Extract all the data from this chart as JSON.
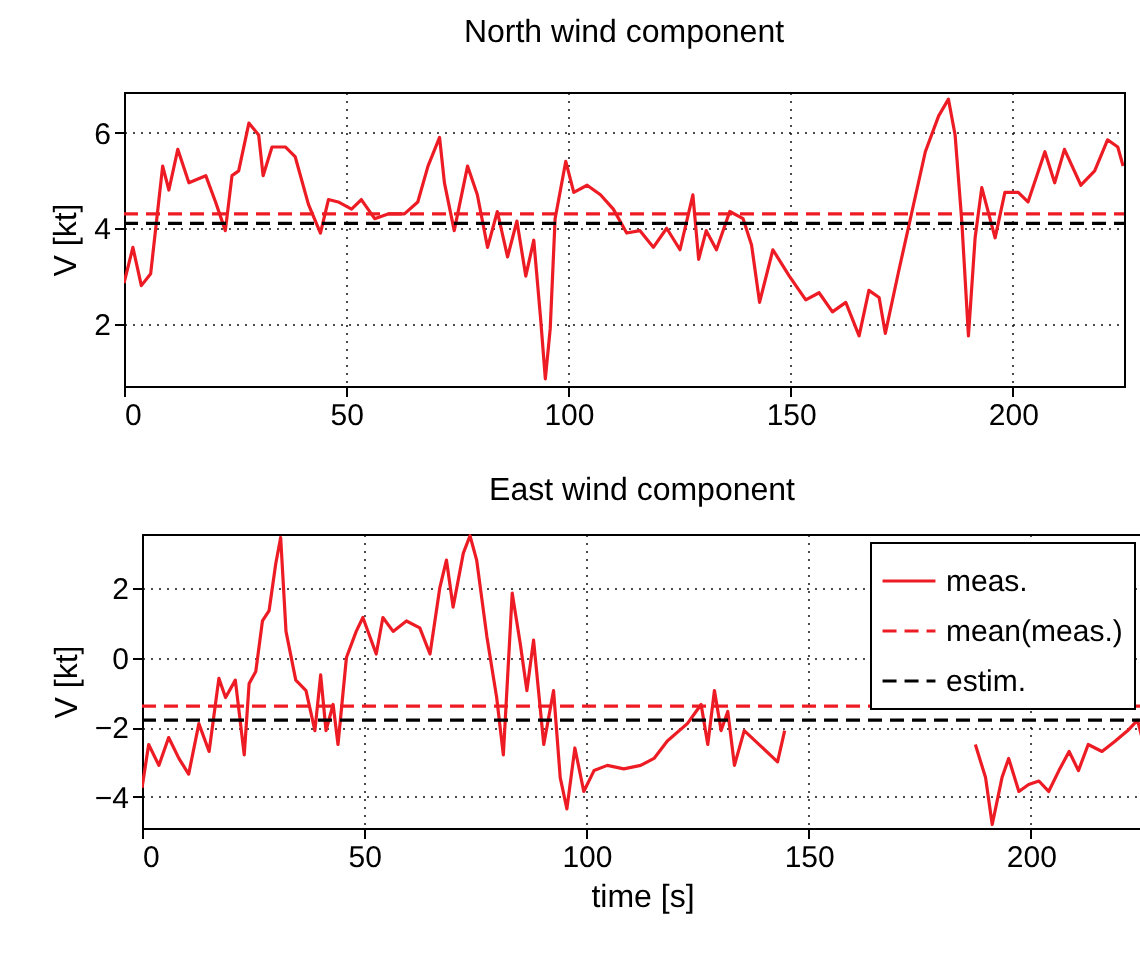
{
  "chart_data": [
    {
      "type": "line",
      "title": "North wind component",
      "ylabel": "V [kt]",
      "xlim": [
        0,
        225
      ],
      "xticks": [
        0,
        50,
        100,
        150,
        200
      ],
      "ylim": [
        0.7,
        6.85
      ],
      "yticks": [
        2,
        4,
        6
      ],
      "grid": true,
      "legend": false,
      "series": [
        {
          "color": "#ed1c24",
          "line_style": "solid",
          "x": [
            0,
            2,
            3.9,
            6,
            8.7,
            10.1,
            12.1,
            14.6,
            18.4,
            20.6,
            22.8,
            24.3,
            25.8,
            28.1,
            30.3,
            31.3,
            33.3,
            36.3,
            38.5,
            41.5,
            44.2,
            46,
            48.2,
            51.2,
            53.4,
            56.4,
            59.4,
            63.1,
            66.1,
            68.4,
            71,
            72.1,
            74.3,
            77.3,
            79.5,
            81.8,
            84,
            86.3,
            88.4,
            90.4,
            92.2,
            93.7,
            94.8,
            95.9,
            97,
            99.4,
            101.2,
            104.2,
            107.2,
            110.1,
            113.1,
            116.1,
            119.1,
            122.1,
            125.1,
            128,
            129.3,
            131,
            133.3,
            136.3,
            139.3,
            141.2,
            143,
            146,
            149.7,
            153.4,
            156.4,
            159.4,
            162.4,
            165.4,
            167.6,
            169.9,
            171.3,
            174.3,
            177.3,
            180.3,
            183.3,
            185.5,
            187,
            188.5,
            190,
            191.5,
            193,
            196,
            198.2,
            201.2,
            203.4,
            207.2,
            209.4,
            211.6,
            215.3,
            218.4,
            221.3,
            223.6,
            224.8
          ],
          "values": [
            2.85,
            3.6,
            2.8,
            3.05,
            5.3,
            4.8,
            5.65,
            4.95,
            5.1,
            4.55,
            3.95,
            5.1,
            5.2,
            6.2,
            5.95,
            5.1,
            5.7,
            5.7,
            5.5,
            4.5,
            3.9,
            4.6,
            4.55,
            4.4,
            4.6,
            4.2,
            4.3,
            4.3,
            4.55,
            5.3,
            5.9,
            4.95,
            3.95,
            5.3,
            4.7,
            3.6,
            4.35,
            3.4,
            4.15,
            3,
            3.75,
            2.15,
            0.85,
            1.9,
            4.2,
            5.4,
            4.75,
            4.9,
            4.7,
            4.4,
            3.9,
            3.95,
            3.6,
            4,
            3.55,
            4.7,
            3.35,
            3.95,
            3.55,
            4.35,
            4.2,
            3.65,
            2.45,
            3.55,
            3,
            2.5,
            2.65,
            2.25,
            2.45,
            1.75,
            2.7,
            2.55,
            1.8,
            3.1,
            4.35,
            5.6,
            6.35,
            6.7,
            5.95,
            4.15,
            1.75,
            3.8,
            4.85,
            3.8,
            4.75,
            4.75,
            4.55,
            5.6,
            4.95,
            5.65,
            4.9,
            5.2,
            5.85,
            5.7,
            5.3
          ]
        },
        {
          "color": "#ed1c24",
          "line_style": "dashed",
          "x": [
            0,
            225
          ],
          "values": [
            4.3,
            4.3
          ]
        },
        {
          "color": "#000000",
          "line_style": "dashed",
          "x": [
            0,
            225
          ],
          "values": [
            4.1,
            4.1
          ]
        }
      ]
    },
    {
      "type": "line",
      "title": "East wind component",
      "xlabel": "time [s]",
      "ylabel": "V [kt]",
      "xlim": [
        0,
        225
      ],
      "xticks": [
        0,
        50,
        100,
        150,
        200
      ],
      "ylim": [
        -4.9,
        3.55
      ],
      "yticks": [
        -4,
        -2,
        0,
        2
      ],
      "grid": true,
      "legend": "top right",
      "series": [
        {
          "name": "meas.",
          "color": "#ed1c24",
          "line_style": "solid",
          "x": [
            0,
            1.5,
            3.8,
            6,
            8.3,
            10.5,
            12.8,
            15.1,
            17.3,
            18.8,
            21,
            23,
            24.1,
            25.6,
            27.1,
            28.6,
            30.1,
            31.2,
            32.4,
            34.6,
            36.9,
            38.9,
            40.2,
            41.4,
            43,
            44.1,
            46,
            48.2,
            49.7,
            52.7,
            54.2,
            56.5,
            59.5,
            62.5,
            64.8,
            67,
            68.5,
            70,
            72.3,
            73.8,
            75.3,
            77.6,
            79.8,
            81.3,
            83.3,
            85.1,
            86.6,
            88.1,
            90.4,
            92.6,
            94.1,
            95.6,
            97.4,
            99.4,
            101.7,
            104.7,
            108.4,
            112.2,
            115.2,
            118.2,
            122.7,
            125.8,
            127.3,
            128.8,
            130.3,
            131.8,
            133.3,
            135.5,
            143,
            144.6,
            150,
            170.9,
            173.5,
            180,
            187.5,
            189.8,
            191.3,
            193.5,
            195,
            197.3,
            199.5,
            201.8,
            204,
            206.3,
            208.6,
            210.7,
            212.9,
            216,
            219,
            221.8,
            224,
            225
          ],
          "values": [
            -3.75,
            -2.5,
            -3.1,
            -2.3,
            -2.9,
            -3.35,
            -1.9,
            -2.7,
            -0.6,
            -1.15,
            -0.65,
            -2.8,
            -0.75,
            -0.4,
            1.05,
            1.35,
            2.7,
            3.45,
            0.75,
            -0.65,
            -0.95,
            -2.1,
            -0.5,
            -2.1,
            -1.35,
            -2.5,
            0,
            0.75,
            1.15,
            0.1,
            1.15,
            0.75,
            1.05,
            0.85,
            0.1,
            2,
            2.8,
            1.45,
            3,
            3.5,
            2.8,
            0.6,
            -1.15,
            -2.8,
            1.85,
            0.4,
            -0.95,
            0.5,
            -2.5,
            -0.95,
            -3.45,
            -4.35,
            -2.6,
            -3.85,
            -3.25,
            -3.1,
            -3.2,
            -3.1,
            -2.9,
            -2.4,
            -1.9,
            -1.35,
            -2.5,
            -0.95,
            -2.1,
            -1.55,
            -3.1,
            -2.1,
            -3,
            -2.1,
            null,
            null,
            null,
            null,
            -2.5,
            -3.45,
            -4.8,
            -3.45,
            -2.9,
            -3.85,
            -3.65,
            -3.55,
            -3.85,
            -3.25,
            -2.7,
            -3.25,
            -2.5,
            -2.7,
            -2.4,
            -2.1,
            -1.8,
            -2.3
          ]
        },
        {
          "name": "mean(meas.)",
          "color": "#ed1c24",
          "line_style": "dashed",
          "x": [
            0,
            225
          ],
          "values": [
            -1.4,
            -1.4
          ]
        },
        {
          "name": "estim.",
          "color": "#000000",
          "line_style": "dashed",
          "x": [
            0,
            225
          ],
          "values": [
            -1.8,
            -1.8
          ]
        }
      ]
    }
  ]
}
